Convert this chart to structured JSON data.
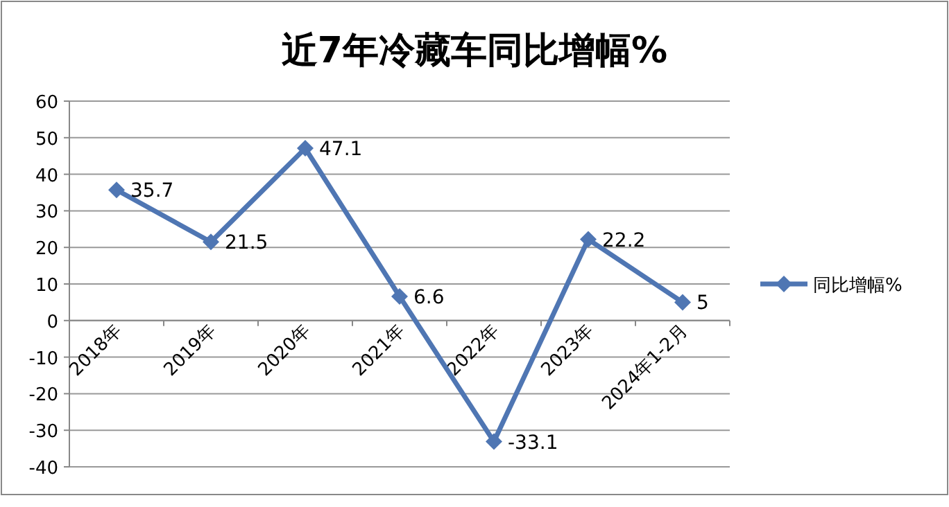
{
  "chart_data": {
    "type": "line",
    "title": "近7年冷藏车同比增幅%",
    "categories": [
      "2018年",
      "2019年",
      "2020年",
      "2021年",
      "2022年",
      "2023年",
      "2024年1-2月"
    ],
    "series": [
      {
        "name": "同比增幅%",
        "color": "#4f76b3",
        "values": [
          35.7,
          21.5,
          47.1,
          6.6,
          -33.1,
          22.2,
          5
        ]
      }
    ],
    "ylim": [
      -40,
      60
    ],
    "yticks": [
      -40,
      -30,
      -20,
      -10,
      0,
      10,
      20,
      30,
      40,
      50,
      60
    ],
    "grid": "y",
    "legend": "right",
    "marker": "diamond",
    "line_style": "solid",
    "data_labels": true
  }
}
